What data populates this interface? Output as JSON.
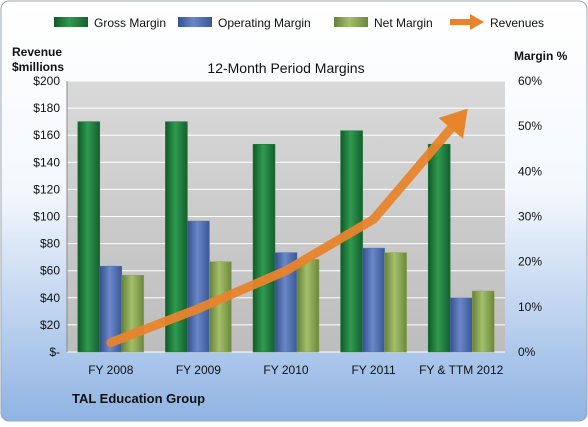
{
  "colors": {
    "gross": "#1e7a3c",
    "operating": "#4f6fb0",
    "net": "#8aa64a",
    "revenue": "#e8842c",
    "plot_bg": "#c9c9c9",
    "grid": "#ffffff",
    "frame_top": "#ffffff",
    "frame_bottom": "#8fb3e3"
  },
  "chart_data": {
    "type": "bar",
    "title": "12-Month Period Margins",
    "company": "TAL Education Group",
    "categories": [
      "FY 2008",
      "FY 2009",
      "FY 2010",
      "FY 2011",
      "FY & TTM 2012"
    ],
    "series": [
      {
        "name": "Gross Margin",
        "axis": "right",
        "values": [
          51,
          51,
          46,
          49,
          46
        ]
      },
      {
        "name": "Operating Margin",
        "axis": "right",
        "values": [
          19,
          29,
          22,
          23,
          12
        ]
      },
      {
        "name": "Net Margin",
        "axis": "right",
        "values": [
          17,
          20,
          20.5,
          22,
          13.5
        ]
      },
      {
        "name": "Revenues",
        "axis": "left",
        "type": "line",
        "values": [
          7,
          32,
          60,
          98,
          174
        ]
      }
    ],
    "left_axis": {
      "label_lines": [
        "Revenue",
        "$millions"
      ],
      "ylim": [
        0,
        200
      ],
      "ticks": [
        {
          "v": 0,
          "label": "$-"
        },
        {
          "v": 20,
          "label": "$20"
        },
        {
          "v": 40,
          "label": "$40"
        },
        {
          "v": 60,
          "label": "$60"
        },
        {
          "v": 80,
          "label": "$80"
        },
        {
          "v": 100,
          "label": "$100"
        },
        {
          "v": 120,
          "label": "$120"
        },
        {
          "v": 140,
          "label": "$140"
        },
        {
          "v": 160,
          "label": "$160"
        },
        {
          "v": 180,
          "label": "$180"
        },
        {
          "v": 200,
          "label": "$200"
        }
      ]
    },
    "right_axis": {
      "label": "Margin %",
      "ylim": [
        0,
        60
      ],
      "ticks": [
        {
          "v": 0,
          "label": "0%"
        },
        {
          "v": 10,
          "label": "10%"
        },
        {
          "v": 20,
          "label": "20%"
        },
        {
          "v": 30,
          "label": "30%"
        },
        {
          "v": 40,
          "label": "40%"
        },
        {
          "v": 50,
          "label": "50%"
        },
        {
          "v": 60,
          "label": "60%"
        }
      ]
    },
    "grid": true,
    "legend_position": "top"
  }
}
